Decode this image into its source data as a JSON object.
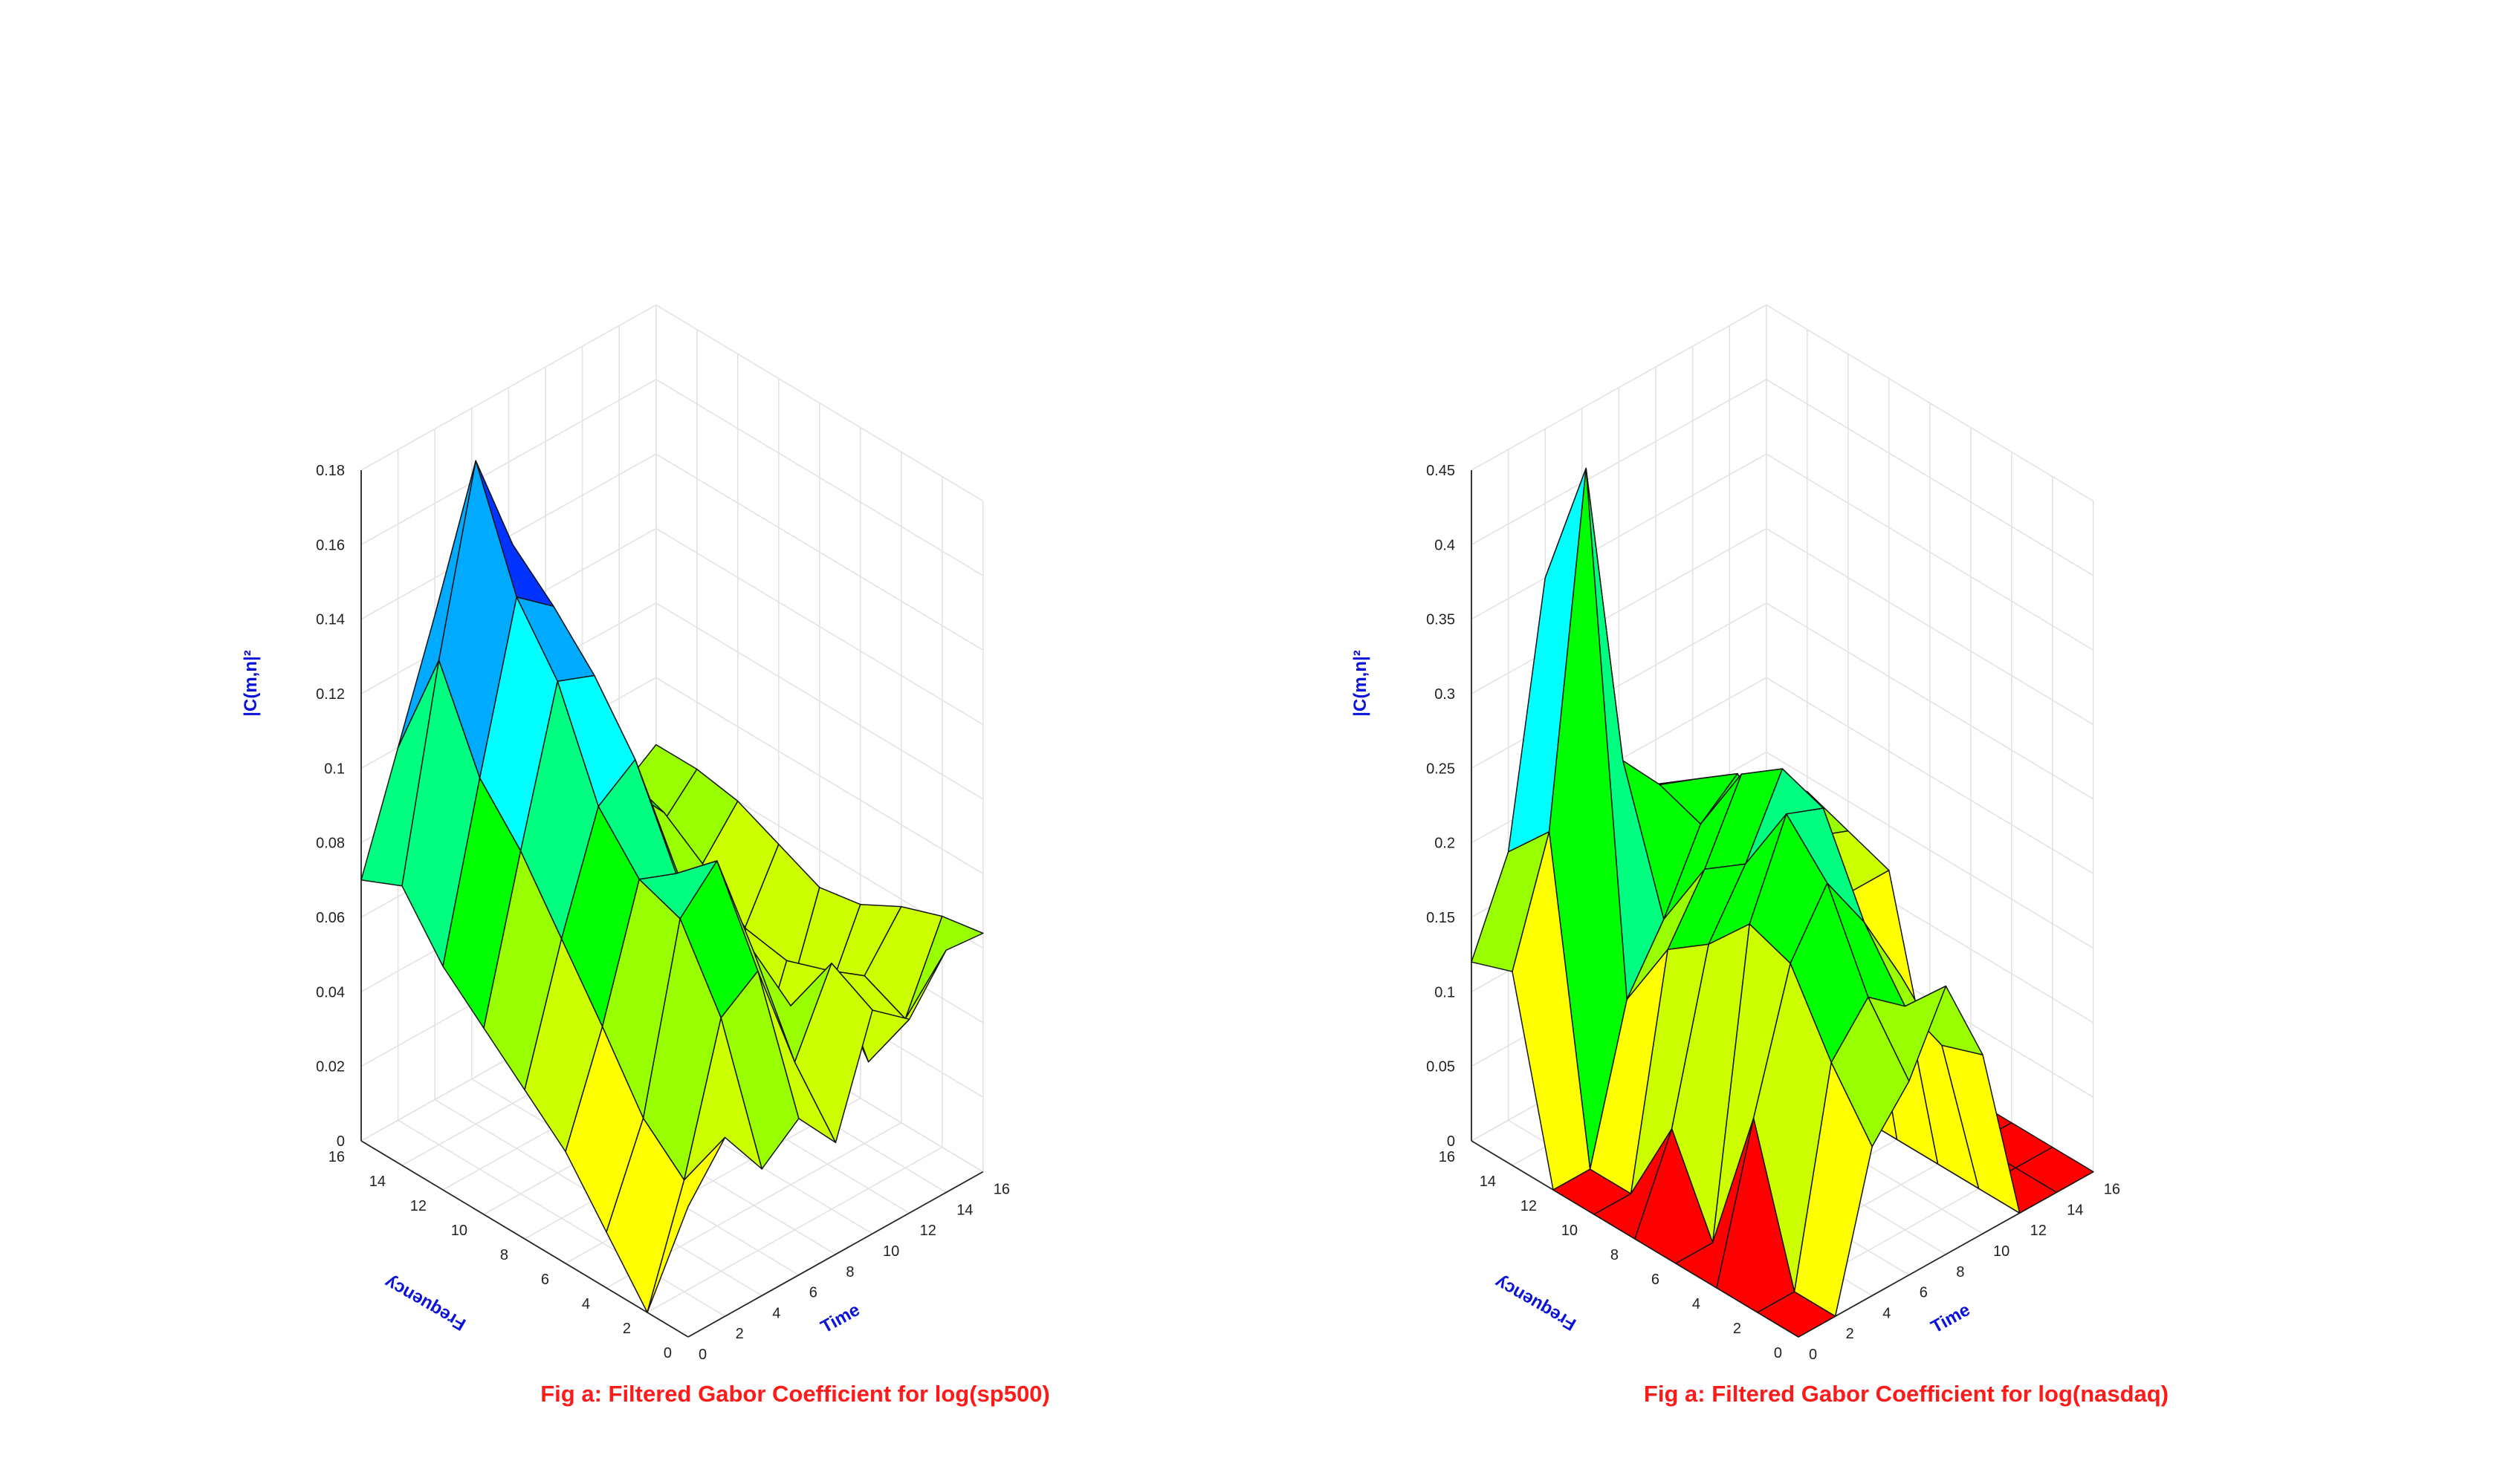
{
  "colors": {
    "red": "#ff0000",
    "yellow": "#ffff00",
    "yellow_green": "#ccff00",
    "lime": "#99ff00",
    "green": "#00ff00",
    "spring_green": "#00ff80",
    "cyan": "#00ffff",
    "sky": "#00aaff",
    "blue": "#0033ff",
    "violet": "#aa00ff",
    "title_color": "#ff0000",
    "axis_label_color": "#0000cc"
  },
  "chart_data": [
    {
      "type": "surface",
      "title": "Fig a: Filtered Gabor Coefficient for log(sp500)",
      "xlabel": "Time",
      "ylabel": "Frequency",
      "zlabel": "|C(m,n|²",
      "x_ticks": [
        "0",
        "2",
        "4",
        "6",
        "8",
        "10",
        "12",
        "14",
        "16"
      ],
      "y_ticks": [
        "0",
        "2",
        "4",
        "6",
        "8",
        "10",
        "12",
        "14",
        "16"
      ],
      "z_ticks": [
        "0",
        "0.02",
        "0.04",
        "0.06",
        "0.08",
        "0.1",
        "0.12",
        "0.14",
        "0.16",
        "0.18"
      ],
      "xlim": [
        0,
        16
      ],
      "ylim": [
        0,
        16
      ],
      "zlim": [
        0,
        0.18
      ],
      "grid": true,
      "x": [
        0,
        2,
        4,
        6,
        8,
        10,
        12,
        14,
        16
      ],
      "y": [
        0,
        2,
        4,
        6,
        8,
        10,
        12,
        14,
        16
      ],
      "z": [
        [
          0.035,
          0.048,
          0.034,
          0.042,
          0.03,
          0.06,
          0.052,
          0.065,
          0.064
        ],
        [
          0.0,
          0.03,
          0.068,
          0.075,
          0.045,
          0.066,
          0.034,
          0.04,
          0.062
        ],
        [
          0.015,
          0.04,
          0.088,
          0.098,
          0.068,
          0.048,
          0.052,
          0.045,
          0.058
        ],
        [
          0.03,
          0.058,
          0.092,
          0.088,
          0.058,
          0.02,
          0.048,
          0.03,
          0.052
        ],
        [
          0.04,
          0.075,
          0.105,
          0.112,
          0.08,
          0.03,
          0.05,
          0.02,
          0.05
        ],
        [
          0.05,
          0.092,
          0.132,
          0.128,
          0.092,
          0.054,
          0.06,
          0.036,
          0.055
        ],
        [
          0.06,
          0.105,
          0.148,
          0.14,
          0.105,
          0.08,
          0.068,
          0.048,
          0.06
        ],
        [
          0.075,
          0.13,
          0.178,
          0.15,
          0.118,
          0.09,
          0.072,
          0.052,
          0.062
        ],
        [
          0.07,
          0.1,
          0.13,
          0.135,
          0.11,
          0.085,
          0.07,
          0.055,
          0.062
        ]
      ]
    },
    {
      "type": "surface",
      "title": "Fig a: Filtered Gabor Coefficient for log(nasdaq)",
      "xlabel": "Time",
      "ylabel": "Frequency",
      "zlabel": "|C(m,n|²",
      "x_ticks": [
        "0",
        "2",
        "4",
        "6",
        "8",
        "10",
        "12",
        "14",
        "16"
      ],
      "y_ticks": [
        "0",
        "2",
        "4",
        "6",
        "8",
        "10",
        "12",
        "14",
        "16"
      ],
      "z_ticks": [
        "0",
        "0.05",
        "0.1",
        "0.15",
        "0.2",
        "0.25",
        "0.3",
        "0.35",
        "0.4",
        "0.45"
      ],
      "xlim": [
        0,
        16
      ],
      "ylim": [
        0,
        16
      ],
      "zlim": [
        0,
        0.45
      ],
      "grid": true,
      "x": [
        0,
        2,
        4,
        6,
        8,
        10,
        12,
        14,
        16
      ],
      "y": [
        0,
        2,
        4,
        6,
        8,
        10,
        12,
        14,
        16
      ],
      "z": [
        [
          0.0,
          0.0,
          0.1,
          0.13,
          0.18,
          0.12,
          0.0,
          0.0,
          0.0
        ],
        [
          0.0,
          0.0,
          0.14,
          0.17,
          0.15,
          0.11,
          0.0,
          0.0,
          0.0
        ],
        [
          0.0,
          0.1,
          0.19,
          0.23,
          0.19,
          0.14,
          0.0,
          0.0,
          0.0
        ],
        [
          0.0,
          0.0,
          0.2,
          0.26,
          0.25,
          0.16,
          0.0,
          0.0,
          0.0
        ],
        [
          0.0,
          0.06,
          0.17,
          0.21,
          0.26,
          0.15,
          0.0,
          0.0,
          0.0
        ],
        [
          0.0,
          0.0,
          0.15,
          0.19,
          0.24,
          0.18,
          0.12,
          0.12,
          0.12
        ],
        [
          0.0,
          0.0,
          0.1,
          0.14,
          0.19,
          0.21,
          0.15,
          0.14,
          0.13
        ],
        [
          0.13,
          0.21,
          0.44,
          0.23,
          0.2,
          0.19,
          0.17,
          0.15,
          0.14
        ],
        [
          0.12,
          0.18,
          0.35,
          0.2,
          0.18,
          0.17,
          0.15,
          0.14,
          0.13
        ]
      ]
    }
  ]
}
